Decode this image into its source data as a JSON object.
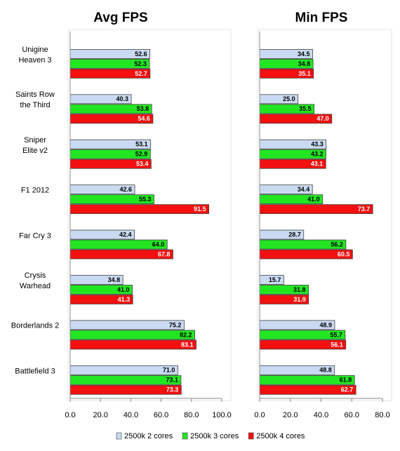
{
  "chart_data": [
    {
      "type": "bar",
      "orientation": "horizontal",
      "title": "Avg FPS",
      "categories": [
        "Unigine\nHeaven 3",
        "Saints Row\nthe Third",
        "Sniper\nElite v2",
        "F1 2012",
        "Far Cry 3",
        "Crysis\nWarhead",
        "Borderlands 2",
        "Battlefield 3"
      ],
      "series": [
        {
          "name": "2500k 2 cores",
          "color": "#c9daf2",
          "values": [
            52.6,
            40.3,
            53.1,
            42.6,
            42.4,
            34.8,
            75.2,
            71.0
          ],
          "value_labels": [
            "52.6",
            "40.3",
            "53.1",
            "42.6",
            "42.4",
            "34.8",
            "75.2",
            "71.0"
          ]
        },
        {
          "name": "2500k 3 cores",
          "color": "#22e622",
          "values": [
            52.3,
            53.8,
            52.9,
            55.3,
            64.0,
            41.0,
            82.2,
            73.1
          ],
          "value_labels": [
            "52.3",
            "53.8",
            "52.9",
            "55.3",
            "64.0",
            "41.0",
            "82.2",
            "73.1"
          ]
        },
        {
          "name": "2500k 4 cores",
          "color": "#f21010",
          "values": [
            52.7,
            54.6,
            53.4,
            91.5,
            67.8,
            41.3,
            83.1,
            73.3
          ],
          "value_labels": [
            "52.7",
            "54.6",
            "53.4",
            "91.5",
            "67.8",
            "41.3",
            "83.1",
            "73.3"
          ]
        }
      ],
      "xlim": [
        0,
        100
      ],
      "xticks": [
        {
          "value": 0,
          "label": "0.0"
        },
        {
          "value": 20,
          "label": "20.0"
        },
        {
          "value": 40,
          "label": "40.0"
        },
        {
          "value": 60,
          "label": "60.0"
        },
        {
          "value": 80,
          "label": "80.0"
        },
        {
          "value": 100,
          "label": "100.0"
        }
      ],
      "legend": "bottom"
    },
    {
      "type": "bar",
      "orientation": "horizontal",
      "title": "Min FPS",
      "series": [
        {
          "name": "2500k 2 cores",
          "color": "#c9daf2",
          "values": [
            34.5,
            25.0,
            43.3,
            34.4,
            28.7,
            15.7,
            48.9,
            48.8
          ],
          "value_labels": [
            "34.5",
            "25.0",
            "43.3",
            "34.4",
            "28.7",
            "15.7",
            "48.9",
            "48.8"
          ]
        },
        {
          "name": "2500k 3 cores",
          "color": "#22e622",
          "values": [
            34.8,
            35.5,
            43.2,
            41.0,
            56.2,
            31.8,
            55.7,
            61.8
          ],
          "value_labels": [
            "34.8",
            "35.5",
            "43.2",
            "41.0",
            "56.2",
            "31.8",
            "55.7",
            "61.8"
          ]
        },
        {
          "name": "2500k 4 cores",
          "color": "#f21010",
          "values": [
            35.1,
            47.0,
            43.1,
            73.7,
            60.5,
            31.9,
            56.1,
            62.7
          ],
          "value_labels": [
            "35.1",
            "47.0",
            "43.1",
            "73.7",
            "60.5",
            "31.9",
            "56.1",
            "62.7"
          ]
        }
      ],
      "xlim": [
        0,
        80
      ],
      "xticks": [
        {
          "value": 0,
          "label": "0.0"
        },
        {
          "value": 20,
          "label": "20.0"
        },
        {
          "value": 40,
          "label": "40.0"
        },
        {
          "value": 60,
          "label": "60.0"
        },
        {
          "value": 80,
          "label": "80.0"
        }
      ]
    }
  ]
}
